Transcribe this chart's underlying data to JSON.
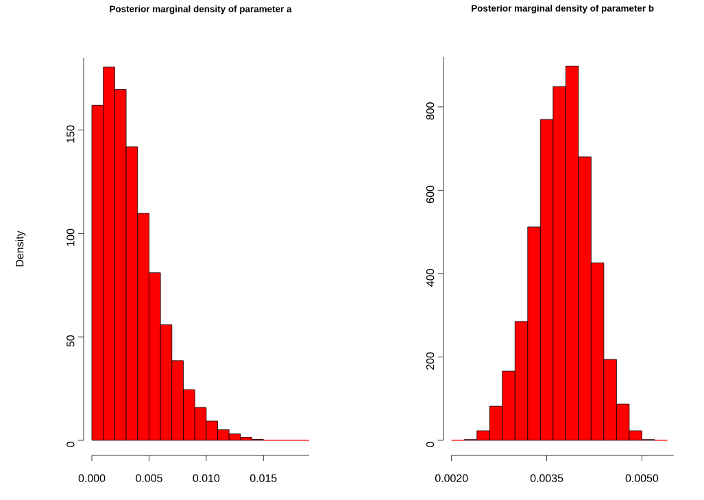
{
  "chart_data": [
    {
      "type": "histogram",
      "title": "Posterior marginal density of parameter a",
      "ylabel": "Density",
      "bins": [
        0,
        0.001,
        0.002,
        0.003,
        0.004,
        0.005,
        0.006,
        0.007,
        0.008,
        0.009,
        0.01,
        0.011,
        0.012,
        0.013,
        0.014,
        0.015,
        0.016,
        0.017,
        0.018,
        0.019
      ],
      "values": [
        162,
        180.4,
        169.6,
        141.9,
        109.7,
        81.0,
        55.9,
        38.5,
        24.5,
        15.9,
        9.3,
        5.1,
        3.1,
        1.5,
        0.5,
        0,
        0,
        0,
        0
      ],
      "color": "#ff0000",
      "xlim": [
        0,
        0.019
      ],
      "ylim": [
        0,
        185
      ],
      "xticks": [
        {
          "value": 0,
          "label": "0.000"
        },
        {
          "value": 0.005,
          "label": "0.005"
        },
        {
          "value": 0.01,
          "label": "0.010"
        },
        {
          "value": 0.015,
          "label": "0.015"
        }
      ],
      "yticks": [
        0,
        50,
        100,
        150
      ]
    },
    {
      "type": "histogram",
      "title": "Posterior marginal density of parameter b",
      "bins": [
        0.002,
        0.0022,
        0.0024,
        0.0026,
        0.0028,
        0.003,
        0.0032,
        0.0034,
        0.0036,
        0.0038,
        0.004,
        0.0042,
        0.0044,
        0.0046,
        0.0048,
        0.005,
        0.0052,
        0.0054
      ],
      "values": [
        0,
        2,
        23,
        82,
        166,
        285,
        512,
        770,
        849,
        898,
        680,
        426,
        194,
        87,
        23,
        2,
        0
      ],
      "color": "#ff0000",
      "xlim": [
        0.002,
        0.0055
      ],
      "ylim": [
        0,
        920
      ],
      "xticks": [
        {
          "value": 0.002,
          "label": "0.0020"
        },
        {
          "value": 0.0035,
          "label": "0.0035"
        },
        {
          "value": 0.005,
          "label": "0.0050"
        }
      ],
      "yticks": [
        0,
        200,
        400,
        600,
        800
      ]
    }
  ]
}
